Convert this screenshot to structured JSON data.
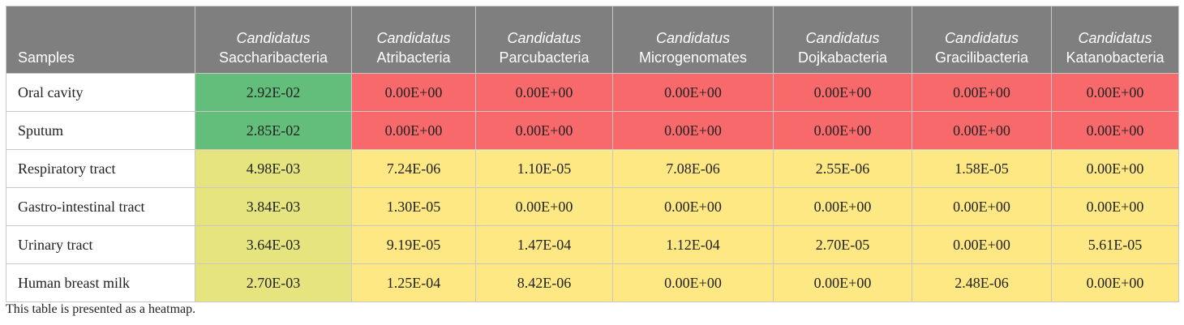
{
  "table": {
    "corner_label": "Samples",
    "columns": [
      {
        "italic": "Candidatus",
        "name": "Saccharibacteria"
      },
      {
        "italic": "Candidatus",
        "name": "Atribacteria"
      },
      {
        "italic": "Candidatus",
        "name": "Parcubacteria"
      },
      {
        "italic": "Candidatus",
        "name": "Microgenomates"
      },
      {
        "italic": "Candidatus",
        "name": "Dojkabacteria"
      },
      {
        "italic": "Candidatus",
        "name": "Gracilibacteria"
      },
      {
        "italic": "Candidatus",
        "name": "Katanobacteria"
      }
    ],
    "rows": [
      {
        "label": "Oral cavity",
        "cells": [
          {
            "text": "2.92E-02",
            "color": "#63be7b"
          },
          {
            "text": "0.00E+00",
            "color": "#f8696b"
          },
          {
            "text": "0.00E+00",
            "color": "#f8696b"
          },
          {
            "text": "0.00E+00",
            "color": "#f8696b"
          },
          {
            "text": "0.00E+00",
            "color": "#f8696b"
          },
          {
            "text": "0.00E+00",
            "color": "#f8696b"
          },
          {
            "text": "0.00E+00",
            "color": "#f8696b"
          }
        ]
      },
      {
        "label": "Sputum",
        "cells": [
          {
            "text": "2.85E-02",
            "color": "#63be7b"
          },
          {
            "text": "0.00E+00",
            "color": "#f8696b"
          },
          {
            "text": "0.00E+00",
            "color": "#f8696b"
          },
          {
            "text": "0.00E+00",
            "color": "#f8696b"
          },
          {
            "text": "0.00E+00",
            "color": "#f8696b"
          },
          {
            "text": "0.00E+00",
            "color": "#f8696b"
          },
          {
            "text": "0.00E+00",
            "color": "#f8696b"
          }
        ]
      },
      {
        "label": "Respiratory tract",
        "cells": [
          {
            "text": "4.98E-03",
            "color": "#e6e47f"
          },
          {
            "text": "7.24E-06",
            "color": "#fee883"
          },
          {
            "text": "1.10E-05",
            "color": "#fee883"
          },
          {
            "text": "7.08E-06",
            "color": "#fee883"
          },
          {
            "text": "2.55E-06",
            "color": "#fee883"
          },
          {
            "text": "1.58E-05",
            "color": "#fee883"
          },
          {
            "text": "0.00E+00",
            "color": "#fee883"
          }
        ]
      },
      {
        "label": "Gastro-intestinal tract",
        "cells": [
          {
            "text": "3.84E-03",
            "color": "#e6e47f"
          },
          {
            "text": "1.30E-05",
            "color": "#fee883"
          },
          {
            "text": "0.00E+00",
            "color": "#fee883"
          },
          {
            "text": "0.00E+00",
            "color": "#fee883"
          },
          {
            "text": "0.00E+00",
            "color": "#fee883"
          },
          {
            "text": "0.00E+00",
            "color": "#fee883"
          },
          {
            "text": "0.00E+00",
            "color": "#fee883"
          }
        ]
      },
      {
        "label": "Urinary tract",
        "cells": [
          {
            "text": "3.64E-03",
            "color": "#e6e47f"
          },
          {
            "text": "9.19E-05",
            "color": "#fee883"
          },
          {
            "text": "1.47E-04",
            "color": "#fee883"
          },
          {
            "text": "1.12E-04",
            "color": "#fee883"
          },
          {
            "text": "2.70E-05",
            "color": "#fee883"
          },
          {
            "text": "0.00E+00",
            "color": "#fee883"
          },
          {
            "text": "5.61E-05",
            "color": "#fee883"
          }
        ]
      },
      {
        "label": "Human breast milk",
        "cells": [
          {
            "text": "2.70E-03",
            "color": "#e6e47f"
          },
          {
            "text": "1.25E-04",
            "color": "#fee883"
          },
          {
            "text": "8.42E-06",
            "color": "#fee883"
          },
          {
            "text": "0.00E+00",
            "color": "#fee883"
          },
          {
            "text": "0.00E+00",
            "color": "#fee883"
          },
          {
            "text": "2.48E-06",
            "color": "#fee883"
          },
          {
            "text": "0.00E+00",
            "color": "#fee883"
          }
        ]
      }
    ],
    "footnote": "This table is presented as a heatmap."
  },
  "colors": {
    "header_bg": "#7f7f7f",
    "header_text": "#ffffff",
    "high": "#63be7b",
    "mid": "#e6e47f",
    "low_nonzero": "#fee883",
    "zero": "#f8696b"
  },
  "chart_data": {
    "type": "heatmap",
    "x": [
      "Candidatus Saccharibacteria",
      "Candidatus Atribacteria",
      "Candidatus Parcubacteria",
      "Candidatus Microgenomates",
      "Candidatus Dojkabacteria",
      "Candidatus Gracilibacteria",
      "Candidatus Katanobacteria"
    ],
    "y": [
      "Oral cavity",
      "Sputum",
      "Respiratory tract",
      "Gastro-intestinal tract",
      "Urinary tract",
      "Human breast milk"
    ],
    "values": [
      [
        0.0292,
        0,
        0,
        0,
        0,
        0,
        0
      ],
      [
        0.0285,
        0,
        0,
        0,
        0,
        0,
        0
      ],
      [
        0.00498,
        7.24e-06,
        1.1e-05,
        7.08e-06,
        2.55e-06,
        1.58e-05,
        0
      ],
      [
        0.00384,
        1.3e-05,
        0,
        0,
        0,
        0,
        0
      ],
      [
        0.00364,
        9.19e-05,
        0.000147,
        0.000112,
        2.7e-05,
        0,
        5.61e-05
      ],
      [
        0.0027,
        0.000125,
        8.42e-06,
        0,
        0,
        2.48e-06,
        0
      ]
    ],
    "xlabel": "",
    "ylabel": "Samples",
    "title": ""
  }
}
